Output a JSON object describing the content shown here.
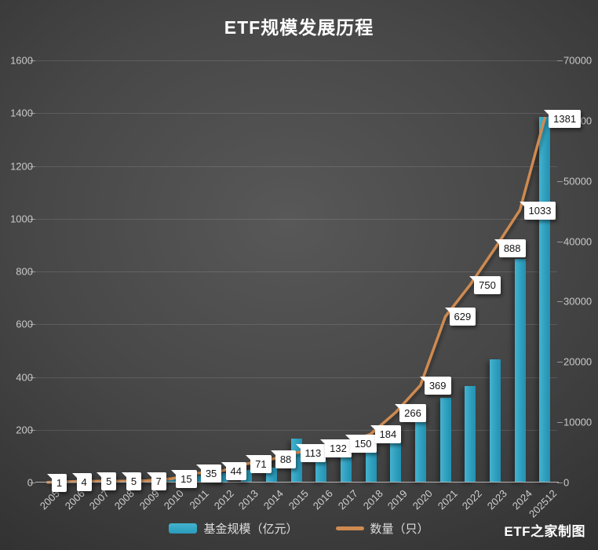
{
  "title": "ETF规模发展历程",
  "watermark": "ETF之家制图",
  "legend": {
    "bar_label": "基金规模（亿元）",
    "line_label": "数量（只）"
  },
  "colors": {
    "background": "#474747",
    "bar": "#2f9fbe",
    "line": "#cf8a50",
    "grid": "rgba(255,255,255,0.12)",
    "axis_text": "#c9c9c9",
    "callout_bg": "#ffffff",
    "callout_text": "#141414"
  },
  "chart_data": {
    "type": "bar",
    "title": "ETF规模发展历程",
    "categories": [
      "2005",
      "2006",
      "2007",
      "2008",
      "2009",
      "2010",
      "2011",
      "2012",
      "2013",
      "2014",
      "2015",
      "2016",
      "2017",
      "2018",
      "2019",
      "2020",
      "2021",
      "2022",
      "2023",
      "2024",
      "202512"
    ],
    "series": [
      {
        "name": "基金规模（亿元）",
        "type": "bar",
        "y_axis": "right",
        "values": [
          50,
          100,
          250,
          250,
          450,
          650,
          1000,
          1450,
          1900,
          2300,
          7200,
          3500,
          4500,
          5100,
          6500,
          10100,
          13900,
          15900,
          20300,
          37000,
          60500
        ]
      },
      {
        "name": "数量（只）",
        "type": "line",
        "y_axis": "left",
        "data_labels": true,
        "values": [
          1,
          4,
          5,
          5,
          7,
          15,
          35,
          44,
          71,
          88,
          113,
          132,
          150,
          184,
          266,
          369,
          629,
          750,
          888,
          1033,
          1381
        ]
      }
    ],
    "left_axis": {
      "min": 0,
      "max": 1600,
      "step": 200,
      "ticks": [
        "0",
        "200",
        "400",
        "600",
        "800",
        "1000",
        "1200",
        "1400",
        "1600"
      ]
    },
    "right_axis": {
      "min": 0,
      "max": 70000,
      "step": 10000,
      "ticks": [
        "0",
        "10000",
        "20000",
        "30000",
        "40000",
        "50000",
        "60000",
        "70000"
      ]
    },
    "legend_position": "bottom",
    "grid": "horizontal"
  }
}
